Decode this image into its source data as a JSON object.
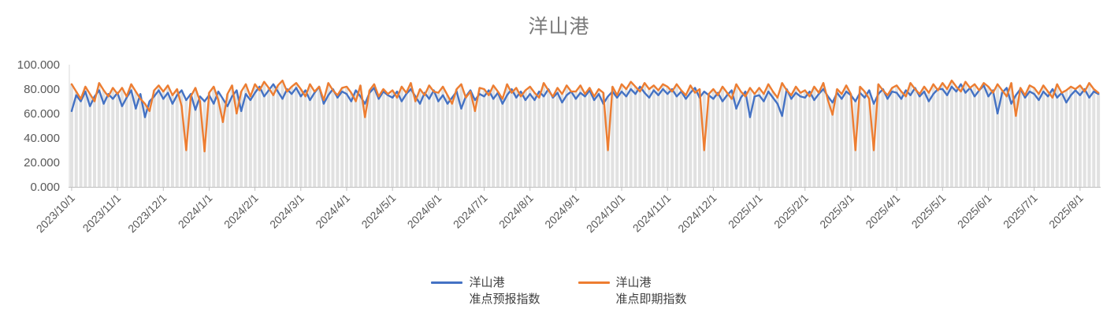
{
  "title": "洋山港",
  "colors": {
    "forecast_line": "#4472C4",
    "spot_line": "#ED7D31",
    "drop_bars": "#E1E1E1",
    "axis_line": "#BFBFBF",
    "tick_text": "#595959",
    "title_text": "#7A7A7A",
    "legend_text": "#404040"
  },
  "legend": {
    "position": "bottom",
    "items": [
      {
        "line1": "洋山港",
        "line2": "准点预报指数",
        "color": "#4472C4"
      },
      {
        "line1": "洋山港",
        "line2": "准点即期指数",
        "color": "#ED7D31"
      }
    ]
  },
  "y_axis": {
    "tick_labels": [
      "0.000",
      "20.000",
      "40.000",
      "60.000",
      "80.000",
      "100.000"
    ],
    "min": 0,
    "max": 100
  },
  "x_axis": {
    "tick_labels": [
      "2023/10/1",
      "2023/11/1",
      "2023/12/1",
      "2024/1/1",
      "2024/2/1",
      "2024/3/1",
      "2024/4/1",
      "2024/5/1",
      "2024/6/1",
      "2024/7/1",
      "2024/8/1",
      "2024/9/1",
      "2024/10/1",
      "2024/11/1",
      "2024/12/1",
      "2025/1/1",
      "2025/2/1",
      "2025/3/1",
      "2025/4/1",
      "2025/5/1",
      "2025/6/1",
      "2025/7/1",
      "2025/8/1"
    ],
    "points_per_month": 10
  },
  "chart_data": {
    "type": "line",
    "title": "洋山港",
    "xlabel": "",
    "ylabel": "",
    "ylim": [
      0,
      100
    ],
    "grid": false,
    "legend_position": "bottom",
    "x_tick_labels": [
      "2023/10/1",
      "2023/11/1",
      "2023/12/1",
      "2024/1/1",
      "2024/2/1",
      "2024/3/1",
      "2024/4/1",
      "2024/5/1",
      "2024/6/1",
      "2024/7/1",
      "2024/8/1",
      "2024/9/1",
      "2024/10/1",
      "2024/11/1",
      "2024/12/1",
      "2025/1/1",
      "2025/2/1",
      "2025/3/1",
      "2025/4/1",
      "2025/5/1",
      "2025/6/1",
      "2025/7/1",
      "2025/8/1"
    ],
    "background_drop_bars": "gray vertical bar at each point up to the max of the two series",
    "series": [
      {
        "name": "洋山港 准点预报指数",
        "color": "#4472C4",
        "values": [
          62,
          75,
          70,
          78,
          66,
          74,
          79,
          68,
          76,
          72,
          77,
          66,
          73,
          79,
          64,
          76,
          57,
          70,
          74,
          79,
          72,
          77,
          68,
          75,
          79,
          71,
          76,
          63,
          74,
          70,
          75,
          68,
          78,
          72,
          66,
          74,
          79,
          62,
          76,
          71,
          77,
          82,
          74,
          79,
          84,
          78,
          72,
          80,
          76,
          81,
          74,
          79,
          71,
          77,
          82,
          68,
          75,
          80,
          73,
          78,
          76,
          70,
          79,
          74,
          68,
          77,
          81,
          72,
          78,
          75,
          73,
          78,
          70,
          76,
          80,
          74,
          68,
          77,
          72,
          79,
          70,
          75,
          68,
          73,
          78,
          64,
          74,
          79,
          71,
          76,
          74,
          79,
          72,
          77,
          68,
          75,
          80,
          73,
          78,
          71,
          76,
          71,
          78,
          74,
          80,
          73,
          77,
          69,
          75,
          78,
          72,
          77,
          74,
          79,
          71,
          76,
          68,
          74,
          78,
          73,
          78,
          74,
          80,
          76,
          82,
          77,
          73,
          79,
          75,
          80,
          76,
          80,
          74,
          78,
          72,
          77,
          81,
          73,
          78,
          75,
          72,
          77,
          70,
          75,
          79,
          64,
          73,
          78,
          57,
          74,
          75,
          70,
          78,
          73,
          68,
          58,
          80,
          72,
          77,
          74,
          73,
          78,
          71,
          76,
          80,
          74,
          69,
          77,
          72,
          78,
          75,
          70,
          77,
          73,
          79,
          68,
          76,
          80,
          72,
          78,
          77,
          72,
          79,
          75,
          81,
          74,
          78,
          70,
          76,
          80,
          80,
          75,
          82,
          78,
          84,
          77,
          81,
          74,
          79,
          83,
          74,
          79,
          60,
          77,
          81,
          68,
          75,
          80,
          73,
          78,
          76,
          71,
          78,
          74,
          80,
          73,
          77,
          69,
          75,
          79,
          75,
          80,
          73,
          78,
          76
        ]
      },
      {
        "name": "洋山港 准点即期指数",
        "color": "#ED7D31",
        "values": [
          84,
          78,
          72,
          82,
          76,
          70,
          85,
          79,
          74,
          81,
          76,
          81,
          74,
          84,
          78,
          72,
          68,
          62,
          79,
          83,
          78,
          83,
          75,
          80,
          66,
          30,
          74,
          81,
          70,
          29,
          77,
          82,
          71,
          53,
          76,
          83,
          60,
          78,
          84,
          74,
          84,
          79,
          86,
          81,
          75,
          83,
          87,
          78,
          82,
          85,
          80,
          74,
          84,
          78,
          82,
          71,
          85,
          79,
          75,
          81,
          82,
          77,
          70,
          83,
          57,
          79,
          84,
          74,
          80,
          76,
          79,
          73,
          82,
          77,
          85,
          70,
          80,
          75,
          83,
          78,
          77,
          82,
          75,
          68,
          80,
          84,
          73,
          78,
          62,
          81,
          80,
          75,
          83,
          78,
          72,
          84,
          77,
          81,
          74,
          79,
          82,
          77,
          73,
          85,
          79,
          74,
          81,
          76,
          83,
          78,
          78,
          83,
          76,
          81,
          74,
          80,
          77,
          30,
          82,
          75,
          84,
          80,
          86,
          82,
          78,
          85,
          80,
          83,
          79,
          84,
          82,
          78,
          84,
          79,
          75,
          83,
          77,
          80,
          30,
          76,
          80,
          75,
          82,
          77,
          72,
          84,
          78,
          74,
          81,
          76,
          81,
          76,
          84,
          78,
          73,
          85,
          79,
          75,
          82,
          77,
          79,
          74,
          82,
          77,
          85,
          71,
          59,
          80,
          76,
          83,
          76,
          30,
          82,
          78,
          72,
          30,
          84,
          79,
          75,
          81,
          83,
          78,
          74,
          85,
          80,
          76,
          82,
          77,
          84,
          79,
          85,
          80,
          87,
          82,
          78,
          86,
          81,
          84,
          79,
          85,
          82,
          77,
          84,
          79,
          74,
          85,
          58,
          81,
          75,
          83,
          81,
          76,
          83,
          78,
          73,
          84,
          77,
          79,
          82,
          80,
          83,
          78,
          85,
          80,
          77
        ]
      }
    ]
  }
}
